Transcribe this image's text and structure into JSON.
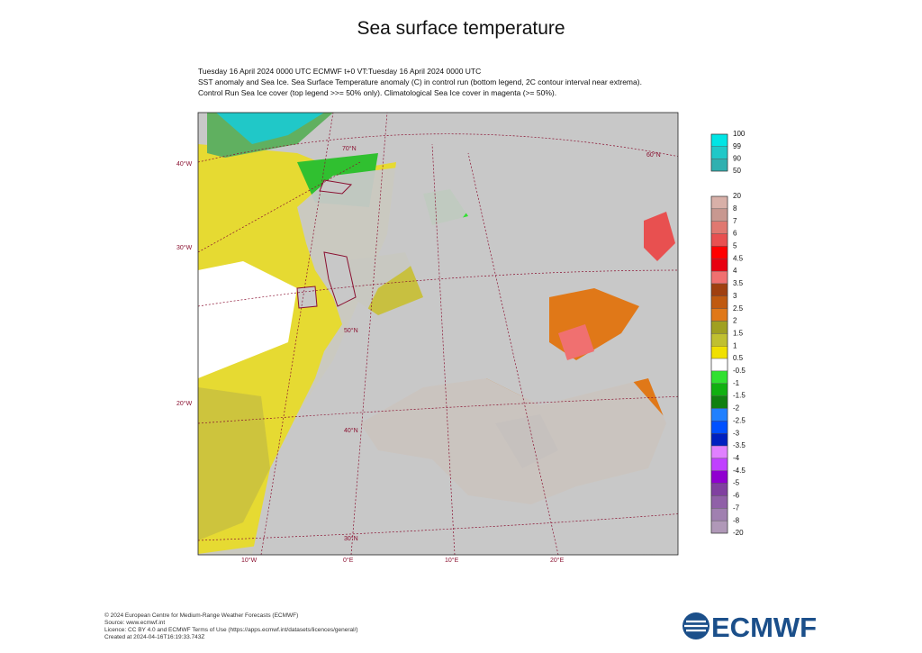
{
  "title": "Sea surface temperature",
  "header_lines": [
    "Tuesday 16 April 2024 0000 UTC   ECMWF t+0  VT:Tuesday 16 April 2024 0000 UTC",
    "SST anomaly and Sea Ice. Sea Surface Temperature anomaly (C) in control run (bottom legend, 2C contour interval near extrema).",
    "Control Run Sea Ice cover (top legend >>= 50% only). Climatological Sea Ice cover in magenta (>= 50%)."
  ],
  "map": {
    "lon_labels": [
      "40°W",
      "30°W",
      "20°W",
      "10°W",
      "0°E",
      "10°E",
      "20°E"
    ],
    "lat_labels": [
      "70°N",
      "60°N",
      "50°N",
      "40°N",
      "30°N"
    ]
  },
  "ice_legend": {
    "labels": [
      "100",
      "99",
      "90",
      "50"
    ],
    "colors": [
      "#00e5e5",
      "#20c8c8",
      "#30b0b0"
    ]
  },
  "anomaly_legend": {
    "labels": [
      "20",
      "8",
      "7",
      "6",
      "5",
      "4.5",
      "4",
      "3.5",
      "3",
      "2.5",
      "2",
      "1.5",
      "1",
      "0.5",
      "-0.5",
      "-1",
      "-1.5",
      "-2",
      "-2.5",
      "-3",
      "-3.5",
      "-4",
      "-4.5",
      "-5",
      "-6",
      "-7",
      "-8",
      "-20"
    ],
    "colors": [
      "#d8b0a8",
      "#c89890",
      "#e07870",
      "#e85050",
      "#ff0000",
      "#e80010",
      "#f07070",
      "#a04010",
      "#c05a10",
      "#e07818",
      "#a0a020",
      "#c0c030",
      "#f0e000",
      "#ffffff",
      "#30e030",
      "#10b010",
      "#108010",
      "#2080ff",
      "#0050ff",
      "#0020c0",
      "#e080ff",
      "#c040ff",
      "#9000d0",
      "#8040a0",
      "#9060a8",
      "#a080b0",
      "#b098b8"
    ]
  },
  "footer": [
    "© 2024 European Centre for Medium-Range Weather Forecasts (ECMWF)",
    "Source: www.ecmwf.int",
    "Licence: CC BY 4.0 and ECMWF Terms of Use (https://apps.ecmwf.int/datasets/licences/general/)",
    "Created at 2024-04-16T16:19:33.743Z"
  ],
  "logo": "ECMWF"
}
